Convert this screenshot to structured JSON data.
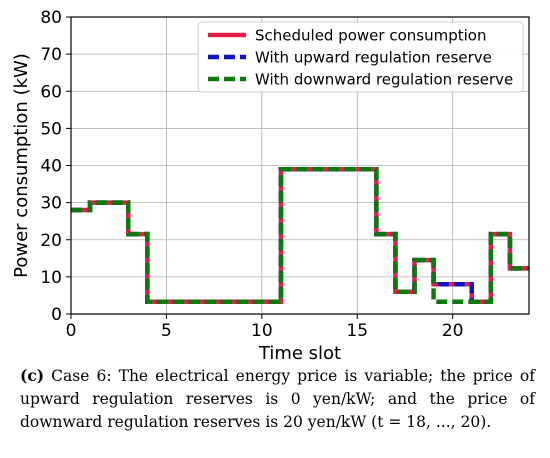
{
  "chart_data": {
    "type": "line",
    "xlabel": "Time slot",
    "ylabel": "Power consumption (kW)",
    "xlim": [
      0,
      24
    ],
    "ylim": [
      0,
      80
    ],
    "xticks": [
      0,
      5,
      10,
      15,
      20
    ],
    "yticks": [
      0,
      10,
      20,
      30,
      40,
      50,
      60,
      70,
      80
    ],
    "grid": true,
    "legend_position": "top-right",
    "step": "post",
    "series": [
      {
        "name": "Scheduled power consumption",
        "color": "#e0204a",
        "style": "solid",
        "x": [
          0,
          1,
          2,
          3,
          4,
          5,
          6,
          7,
          8,
          9,
          10,
          11,
          12,
          13,
          14,
          15,
          16,
          17,
          18,
          19,
          20,
          21,
          22,
          23
        ],
        "values": [
          28,
          30,
          30,
          21.5,
          3.3,
          3.3,
          3.3,
          3.3,
          3.3,
          3.3,
          3.3,
          39,
          39,
          39,
          39,
          39,
          21.5,
          6,
          14.5,
          8,
          8,
          3.3,
          21.5,
          12.3
        ]
      },
      {
        "name": "With upward regulation reserve",
        "color": "#1010c8",
        "style": "dashed",
        "x": [
          0,
          1,
          2,
          3,
          4,
          5,
          6,
          7,
          8,
          9,
          10,
          11,
          12,
          13,
          14,
          15,
          16,
          17,
          18,
          19,
          20,
          21,
          22,
          23
        ],
        "values": [
          28,
          30,
          30,
          21.5,
          3.3,
          3.3,
          3.3,
          3.3,
          3.3,
          3.3,
          3.3,
          39,
          39,
          39,
          39,
          39,
          21.5,
          6,
          14.5,
          8,
          8,
          3.3,
          21.5,
          12.3
        ]
      },
      {
        "name": "With downward regulation reserve",
        "color": "#0a7a0a",
        "style": "dashed",
        "x": [
          0,
          1,
          2,
          3,
          4,
          5,
          6,
          7,
          8,
          9,
          10,
          11,
          12,
          13,
          14,
          15,
          16,
          17,
          18,
          19,
          20,
          21,
          22,
          23
        ],
        "values": [
          28,
          30,
          30,
          21.5,
          3.3,
          3.3,
          3.3,
          3.3,
          3.3,
          3.3,
          3.3,
          39,
          39,
          39,
          39,
          39,
          21.5,
          6,
          14.5,
          3.3,
          3.3,
          3.3,
          21.5,
          12.3
        ]
      }
    ]
  },
  "caption": {
    "label": "(c)",
    "text": "Case 6: The electrical energy price is variable; the price of up­ward regulation reserves is 0 yen/kW; and the price of downward regulation reserves is 20 yen/kW (t = 18, ..., 20)."
  }
}
